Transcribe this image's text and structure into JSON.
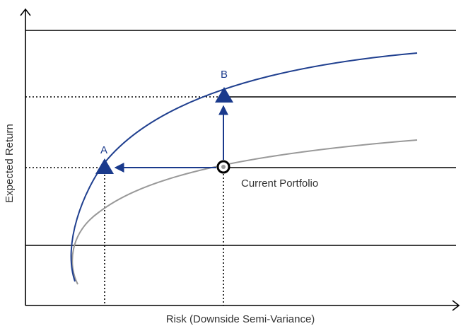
{
  "chart_data": {
    "type": "line",
    "xlabel": "Risk (Downside Semi-Variance)",
    "ylabel": "Expected Return",
    "series": [
      {
        "role": "efficient-frontier",
        "color": "#1f3f8f"
      },
      {
        "role": "current-frontier",
        "color": "#999999"
      }
    ],
    "points": {
      "A": {
        "label": "A",
        "marker": "triangle",
        "color": "#1a3a8c"
      },
      "B": {
        "label": "B",
        "marker": "triangle",
        "color": "#1a3a8c"
      },
      "current": {
        "label": "Current Portfolio",
        "marker": "ring"
      }
    },
    "arrows": [
      {
        "from": "current",
        "to": "A",
        "direction": "left"
      },
      {
        "from": "current",
        "to": "B",
        "direction": "up"
      }
    ],
    "grid": true
  },
  "colors": {
    "accent": "#1a3a8c",
    "secondary_curve": "#999999",
    "axis": "#000000"
  }
}
